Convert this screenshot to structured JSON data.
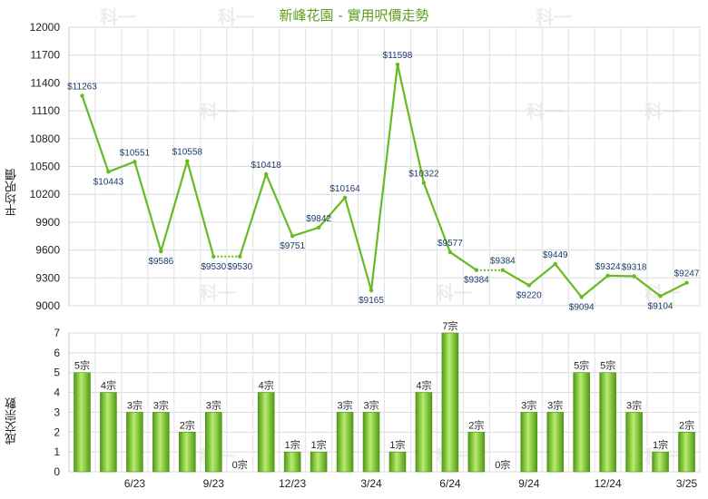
{
  "chart_data": [
    {
      "type": "line",
      "title": "新峰花園 - 實用呎價走勢",
      "ylabel": "平均呎價",
      "ylim": [
        9000,
        12000
      ],
      "yticks": [
        9000,
        9300,
        9600,
        9900,
        10200,
        10500,
        10800,
        11100,
        11400,
        11700,
        12000
      ],
      "grid": true,
      "color": "#66bb22",
      "points": [
        {
          "i": 0,
          "value": 11263,
          "label": "$11263"
        },
        {
          "i": 1,
          "value": 10443,
          "label": "$10443"
        },
        {
          "i": 2,
          "value": 10551,
          "label": "$10551"
        },
        {
          "i": 3,
          "value": 9586,
          "label": "$9586"
        },
        {
          "i": 4,
          "value": 10558,
          "label": "$10558"
        },
        {
          "i": 5,
          "value": 9530,
          "label": "$9530"
        },
        {
          "i": 6,
          "value": 9530,
          "label": "$9530"
        },
        {
          "i": 7,
          "value": 10418,
          "label": "$10418"
        },
        {
          "i": 8,
          "value": 9751,
          "label": "$9751"
        },
        {
          "i": 9,
          "value": 9842,
          "label": "$9842"
        },
        {
          "i": 10,
          "value": 10164,
          "label": "$10164"
        },
        {
          "i": 11,
          "value": 9165,
          "label": "$9165"
        },
        {
          "i": 12,
          "value": 11598,
          "label": "$11598"
        },
        {
          "i": 13,
          "value": 10322,
          "label": "$10322"
        },
        {
          "i": 14,
          "value": 9577,
          "label": "$9577"
        },
        {
          "i": 15,
          "value": 9384,
          "label": "$9384"
        },
        {
          "i": 16,
          "value": 9384,
          "label": "$9384"
        },
        {
          "i": 17,
          "value": 9220,
          "label": "$9220"
        },
        {
          "i": 18,
          "value": 9449,
          "label": "$9449"
        },
        {
          "i": 19,
          "value": 9094,
          "label": "$9094"
        },
        {
          "i": 20,
          "value": 9324,
          "label": "$9324"
        },
        {
          "i": 21,
          "value": 9318,
          "label": "$9318"
        },
        {
          "i": 22,
          "value": 9104,
          "label": "$9104"
        },
        {
          "i": 23,
          "value": 9247,
          "label": "$9247"
        }
      ],
      "dashed_segments": [
        [
          5,
          6
        ],
        [
          15,
          16
        ]
      ]
    },
    {
      "type": "bar",
      "ylabel": "成交宗數",
      "ylim": [
        0,
        7
      ],
      "yticks": [
        0,
        1,
        2,
        3,
        4,
        5,
        6,
        7
      ],
      "grid": true,
      "color": "#66bb22",
      "values": [
        5,
        4,
        3,
        3,
        2,
        3,
        0,
        4,
        1,
        1,
        3,
        3,
        1,
        4,
        7,
        2,
        0,
        3,
        3,
        5,
        5,
        3,
        1,
        2
      ],
      "value_labels": [
        "5宗",
        "4宗",
        "3宗",
        "3宗",
        "2宗",
        "3宗",
        "0宗",
        "4宗",
        "1宗",
        "1宗",
        "3宗",
        "3宗",
        "1宗",
        "4宗",
        "7宗",
        "2宗",
        "0宗",
        "3宗",
        "3宗",
        "5宗",
        "5宗",
        "3宗",
        "1宗",
        "2宗"
      ],
      "x_ticks": [
        {
          "i": 2,
          "label": "6/23"
        },
        {
          "i": 5,
          "label": "9/23"
        },
        {
          "i": 8,
          "label": "12/23"
        },
        {
          "i": 11,
          "label": "3/24"
        },
        {
          "i": 14,
          "label": "6/24"
        },
        {
          "i": 17,
          "label": "9/24"
        },
        {
          "i": 20,
          "label": "12/24"
        },
        {
          "i": 23,
          "label": "3/25"
        }
      ]
    }
  ],
  "watermark": "科一"
}
